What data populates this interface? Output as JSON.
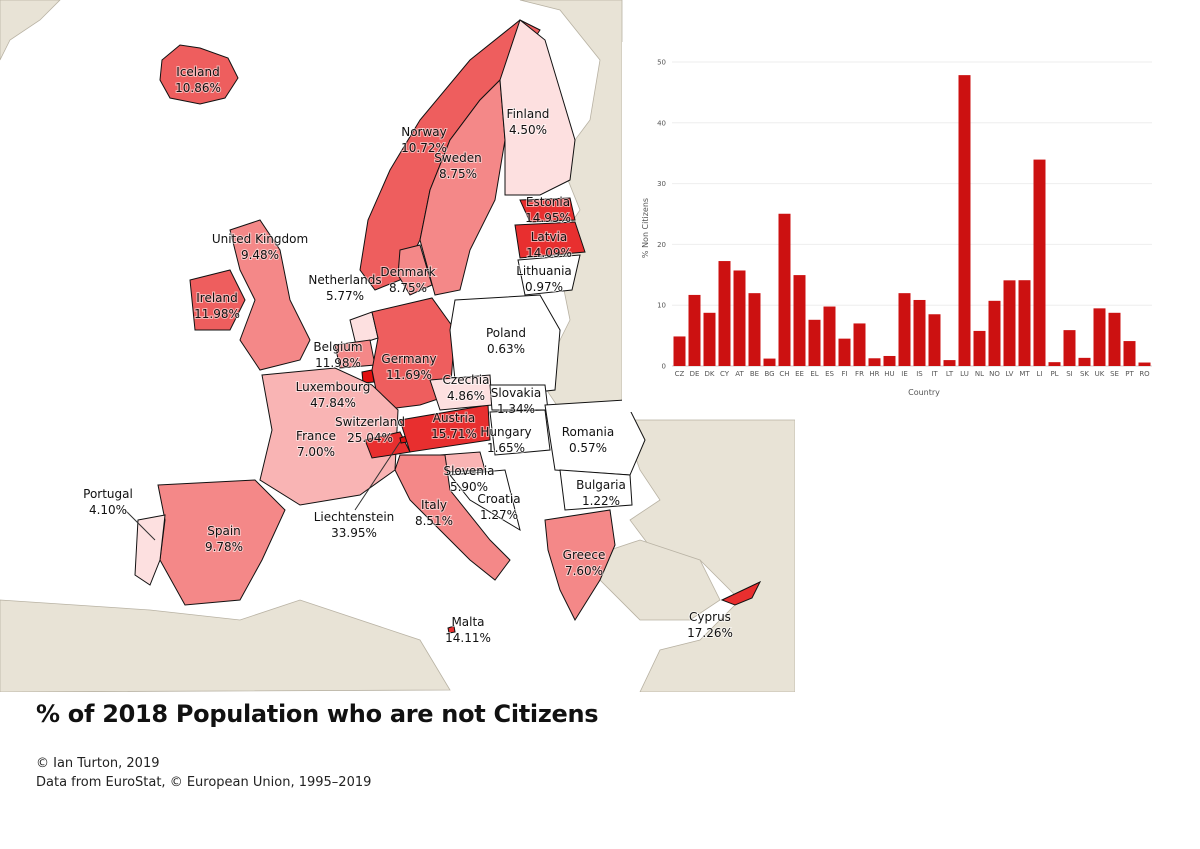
{
  "title": "% of 2018 Population who are not Citizens",
  "credits": {
    "author": "© Ian Turton, 2019",
    "source": "Data from EuroStat, © European Union, 1995–2019"
  },
  "map": {
    "colors": {
      "sea": "#ffffff",
      "background_land": "#e8e3d6",
      "border": "#111111",
      "scale": [
        "#ffffff",
        "#fde0e0",
        "#f9b4b4",
        "#f48888",
        "#ee5e5e",
        "#e82f2f",
        "#e01010"
      ]
    },
    "labels": [
      {
        "country": "Iceland",
        "value": "10.86%"
      },
      {
        "country": "Finland",
        "value": "4.50%"
      },
      {
        "country": "Norway",
        "value": "10.72%"
      },
      {
        "country": "Sweden",
        "value": "8.75%"
      },
      {
        "country": "Estonia",
        "value": "14.95%"
      },
      {
        "country": "Latvia",
        "value": "14.09%"
      },
      {
        "country": "Lithuania",
        "value": "0.97%"
      },
      {
        "country": "United Kingdom",
        "value": "9.48%"
      },
      {
        "country": "Ireland",
        "value": "11.98%"
      },
      {
        "country": "Netherlands",
        "value": "5.77%"
      },
      {
        "country": "Denmark",
        "value": "8.75%"
      },
      {
        "country": "Poland",
        "value": "0.63%"
      },
      {
        "country": "Belgium",
        "value": "11.98%"
      },
      {
        "country": "Germany",
        "value": "11.69%"
      },
      {
        "country": "Luxembourg",
        "value": "47.84%"
      },
      {
        "country": "Czechia",
        "value": "4.86%"
      },
      {
        "country": "Slovakia",
        "value": "1.34%"
      },
      {
        "country": "Switzerland",
        "value": "25.04%"
      },
      {
        "country": "Austria",
        "value": "15.71%"
      },
      {
        "country": "Hungary",
        "value": "1.65%"
      },
      {
        "country": "Romania",
        "value": "0.57%"
      },
      {
        "country": "France",
        "value": "7.00%"
      },
      {
        "country": "Slovenia",
        "value": "5.90%"
      },
      {
        "country": "Croatia",
        "value": "1.27%"
      },
      {
        "country": "Bulgaria",
        "value": "1.22%"
      },
      {
        "country": "Portugal",
        "value": "4.10%"
      },
      {
        "country": "Spain",
        "value": "9.78%"
      },
      {
        "country": "Liechtenstein",
        "value": "33.95%"
      },
      {
        "country": "Italy",
        "value": "8.51%"
      },
      {
        "country": "Greece",
        "value": "7.60%"
      },
      {
        "country": "Malta",
        "value": "14.11%"
      },
      {
        "country": "Cyprus",
        "value": "17.26%"
      }
    ]
  },
  "chart_data": {
    "type": "bar",
    "categories": [
      "CZ",
      "DE",
      "DK",
      "CY",
      "AT",
      "BE",
      "BG",
      "CH",
      "EE",
      "EL",
      "ES",
      "FI",
      "FR",
      "HR",
      "HU",
      "IE",
      "IS",
      "IT",
      "LT",
      "LU",
      "NL",
      "NO",
      "LV",
      "MT",
      "LI",
      "PL",
      "SI",
      "SK",
      "UK",
      "SE",
      "PT",
      "RO"
    ],
    "values": [
      4.86,
      11.69,
      8.75,
      17.26,
      15.71,
      11.98,
      1.22,
      25.04,
      14.95,
      7.6,
      9.78,
      4.5,
      7.0,
      1.27,
      1.65,
      11.98,
      10.86,
      8.51,
      0.97,
      47.84,
      5.77,
      10.72,
      14.09,
      14.11,
      33.95,
      0.63,
      5.9,
      1.34,
      9.48,
      8.75,
      4.1,
      0.57
    ],
    "xlabel": "Country",
    "ylabel": "% Non Citizens",
    "ylim": [
      0,
      50
    ],
    "yticks": [
      0,
      10,
      20,
      30,
      40,
      50
    ],
    "grid": true,
    "bar_color": "#cc1111"
  }
}
